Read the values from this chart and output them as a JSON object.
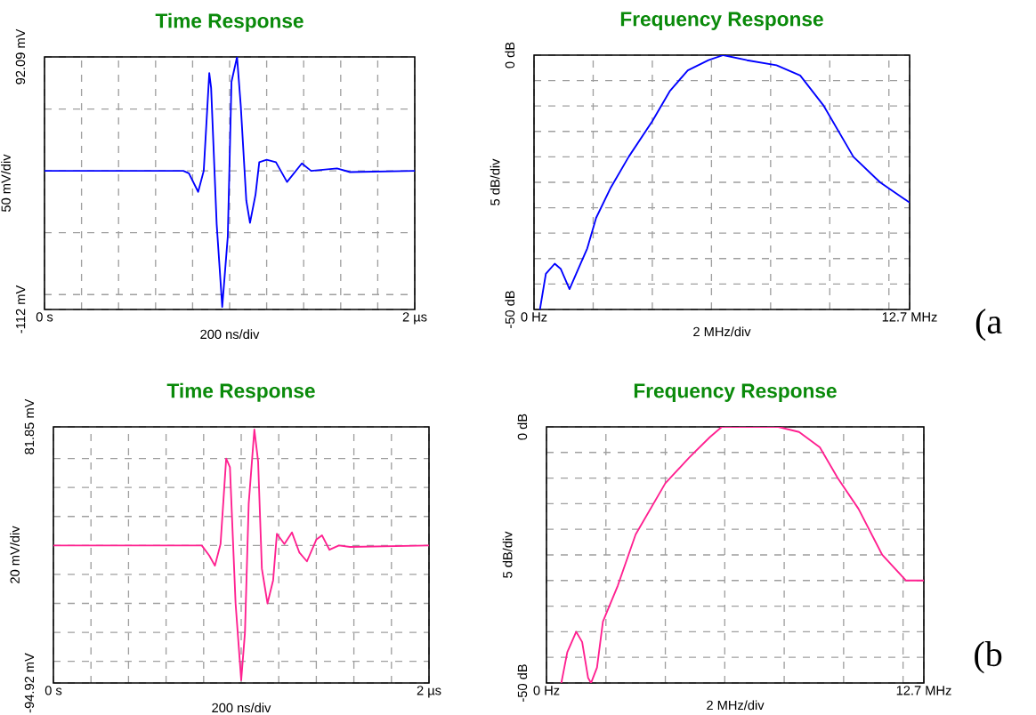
{
  "chart_data": [
    {
      "type": "line",
      "title": "Time Response",
      "xlabel": "200 ns/div",
      "ylabel": "50 mV/div",
      "grid": true,
      "xlim": [
        0,
        2
      ],
      "ylim": [
        -112,
        92.09
      ],
      "xticks": [
        {
          "value": 0,
          "label": "0 s"
        },
        {
          "value": 0.2,
          "label": null
        },
        {
          "value": 0.4,
          "label": null
        },
        {
          "value": 0.6,
          "label": null
        },
        {
          "value": 0.8,
          "label": null
        },
        {
          "value": 1,
          "label": null
        },
        {
          "value": 1.2,
          "label": null
        },
        {
          "value": 1.4,
          "label": null
        },
        {
          "value": 1.6,
          "label": null
        },
        {
          "value": 1.8,
          "label": null
        },
        {
          "value": 2,
          "label": "2 µs"
        }
      ],
      "yticks": [
        {
          "value": -112,
          "label": "-112 mV"
        },
        {
          "value": -100,
          "label": null
        },
        {
          "value": -50,
          "label": null
        },
        {
          "value": 0,
          "label": null
        },
        {
          "value": 50,
          "label": null
        },
        {
          "value": 92.09,
          "label": "92.09 mV"
        }
      ],
      "x": [
        0,
        0.75,
        0.78,
        0.83,
        0.86,
        0.89,
        0.9,
        0.93,
        0.96,
        0.99,
        1.01,
        1.04,
        1.06,
        1.09,
        1.11,
        1.14,
        1.16,
        1.2,
        1.25,
        1.31,
        1.39,
        1.44,
        1.58,
        1.65,
        2
      ],
      "series": [
        {
          "color": "#0000ff",
          "values": [
            0,
            0,
            -2,
            -17,
            0,
            79,
            67,
            -43,
            -110,
            -53,
            72,
            92,
            53,
            -24,
            -42,
            -19,
            7,
            9,
            7,
            -9,
            6,
            0,
            2,
            -1,
            0
          ]
        }
      ]
    },
    {
      "type": "line",
      "title": "Frequency Response",
      "xlabel": "2 MHz/div",
      "ylabel": "5 dB/div",
      "grid": true,
      "xlim": [
        0,
        12.7
      ],
      "ylim": [
        -50,
        0
      ],
      "xticks": [
        {
          "value": 0,
          "label": "0 Hz"
        },
        {
          "value": 2,
          "label": null
        },
        {
          "value": 4,
          "label": null
        },
        {
          "value": 6,
          "label": null
        },
        {
          "value": 8,
          "label": null
        },
        {
          "value": 10,
          "label": null
        },
        {
          "value": 12,
          "label": null
        },
        {
          "value": 12.7,
          "label": "12.7 MHz"
        }
      ],
      "yticks": [
        {
          "value": -50,
          "label": "-50 dB"
        },
        {
          "value": -45,
          "label": null
        },
        {
          "value": -40,
          "label": null
        },
        {
          "value": -35,
          "label": null
        },
        {
          "value": -30,
          "label": null
        },
        {
          "value": -25,
          "label": null
        },
        {
          "value": -20,
          "label": null
        },
        {
          "value": -15,
          "label": null
        },
        {
          "value": -10,
          "label": null
        },
        {
          "value": -5,
          "label": null
        },
        {
          "value": 0,
          "label": "0 dB"
        }
      ],
      "x": [
        0.2,
        0.4,
        0.7,
        0.9,
        1.2,
        1.5,
        1.8,
        2.1,
        2.6,
        3.2,
        4,
        4.6,
        5.2,
        5.9,
        6.4,
        7.2,
        8.2,
        9,
        9.8,
        10.8,
        11.7,
        12.7
      ],
      "series": [
        {
          "color": "#0000ff",
          "values": [
            -50,
            -43,
            -41,
            -42,
            -46,
            -42,
            -38,
            -32,
            -26,
            -20,
            -13,
            -7,
            -3,
            -1,
            0,
            -1,
            -2,
            -4,
            -10,
            -20,
            -25,
            -29
          ]
        }
      ],
      "annotations": [
        "(a"
      ]
    },
    {
      "type": "line",
      "title": "Time Response",
      "xlabel": "200 ns/div",
      "ylabel": "20 mV/div",
      "grid": true,
      "xlim": [
        0,
        2
      ],
      "ylim": [
        -94.92,
        81.85
      ],
      "xticks": [
        {
          "value": 0,
          "label": "0 s"
        },
        {
          "value": 0.2,
          "label": null
        },
        {
          "value": 0.4,
          "label": null
        },
        {
          "value": 0.6,
          "label": null
        },
        {
          "value": 0.8,
          "label": null
        },
        {
          "value": 1,
          "label": null
        },
        {
          "value": 1.2,
          "label": null
        },
        {
          "value": 1.4,
          "label": null
        },
        {
          "value": 1.6,
          "label": null
        },
        {
          "value": 1.8,
          "label": null
        },
        {
          "value": 2,
          "label": "2 µs"
        }
      ],
      "yticks": [
        {
          "value": -94.92,
          "label": "-94.92 mV"
        },
        {
          "value": -80,
          "label": null
        },
        {
          "value": -60,
          "label": null
        },
        {
          "value": -40,
          "label": null
        },
        {
          "value": -20,
          "label": null
        },
        {
          "value": 0,
          "label": null
        },
        {
          "value": 20,
          "label": null
        },
        {
          "value": 40,
          "label": null
        },
        {
          "value": 60,
          "label": null
        },
        {
          "value": 81.85,
          "label": "81.85 mV"
        }
      ],
      "x": [
        0,
        0.79,
        0.83,
        0.86,
        0.89,
        0.92,
        0.94,
        0.97,
        1,
        1.02,
        1.04,
        1.07,
        1.09,
        1.11,
        1.14,
        1.17,
        1.19,
        1.23,
        1.27,
        1.31,
        1.35,
        1.4,
        1.43,
        1.47,
        1.52,
        1.58,
        2
      ],
      "series": [
        {
          "color": "#ff2090",
          "values": [
            0,
            0,
            -7,
            -14,
            1,
            60,
            54,
            -40,
            -93,
            -60,
            29,
            80,
            58,
            -16,
            -40,
            -24,
            8,
            1,
            9,
            -5,
            -11,
            4,
            7,
            -3,
            0,
            -1,
            0
          ]
        }
      ]
    },
    {
      "type": "line",
      "title": "Frequency Response",
      "xlabel": "2 MHz/div",
      "ylabel": "5 dB/div",
      "grid": true,
      "xlim": [
        0,
        12.7
      ],
      "ylim": [
        -50,
        0
      ],
      "xticks": [
        {
          "value": 0,
          "label": "0 Hz"
        },
        {
          "value": 2,
          "label": null
        },
        {
          "value": 4,
          "label": null
        },
        {
          "value": 6,
          "label": null
        },
        {
          "value": 8,
          "label": null
        },
        {
          "value": 10,
          "label": null
        },
        {
          "value": 12,
          "label": null
        },
        {
          "value": 12.7,
          "label": "12.7 MHz"
        }
      ],
      "yticks": [
        {
          "value": -50,
          "label": "-50 dB"
        },
        {
          "value": -45,
          "label": null
        },
        {
          "value": -40,
          "label": null
        },
        {
          "value": -35,
          "label": null
        },
        {
          "value": -30,
          "label": null
        },
        {
          "value": -25,
          "label": null
        },
        {
          "value": -20,
          "label": null
        },
        {
          "value": -15,
          "label": null
        },
        {
          "value": -10,
          "label": null
        },
        {
          "value": -5,
          "label": null
        },
        {
          "value": 0,
          "label": "0 dB"
        }
      ],
      "x": [
        0.5,
        0.7,
        1,
        1.2,
        1.4,
        1.5,
        1.7,
        1.9,
        2.4,
        3,
        4,
        4.8,
        5.5,
        5.9,
        7,
        7.8,
        8.5,
        9.2,
        9.8,
        10.5,
        11.3,
        12.1,
        12.7
      ],
      "series": [
        {
          "color": "#ff2090",
          "values": [
            -50,
            -44,
            -40,
            -42,
            -49,
            -50,
            -47,
            -38,
            -31,
            -21,
            -11,
            -6,
            -2,
            0,
            0,
            0,
            -1,
            -4,
            -10,
            -16,
            -25,
            -30,
            -30
          ]
        }
      ],
      "annotations": [
        "(b"
      ]
    }
  ]
}
